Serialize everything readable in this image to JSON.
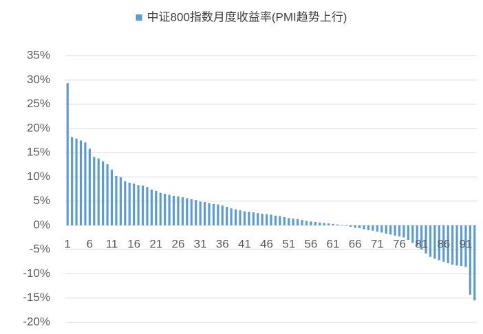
{
  "chart_data": {
    "type": "bar",
    "categories": [
      "1",
      null,
      null,
      null,
      null,
      "6",
      null,
      null,
      null,
      null,
      "11",
      null,
      null,
      null,
      null,
      "16",
      null,
      null,
      null,
      null,
      "21",
      null,
      null,
      null,
      null,
      "26",
      null,
      null,
      null,
      null,
      "31",
      null,
      null,
      null,
      null,
      "36",
      null,
      null,
      null,
      null,
      "41",
      null,
      null,
      null,
      null,
      "46",
      null,
      null,
      null,
      null,
      "51",
      null,
      null,
      null,
      null,
      "56",
      null,
      null,
      null,
      null,
      "61",
      null,
      null,
      null,
      null,
      "66",
      null,
      null,
      null,
      null,
      "71",
      null,
      null,
      null,
      null,
      "76",
      null,
      null,
      null,
      null,
      "81",
      null,
      null,
      null,
      null,
      "86",
      null,
      null,
      null,
      null,
      "91",
      null,
      null
    ],
    "series": [
      {
        "name": "中证800指数月度收益率(PMI趋势上行)",
        "color": "#5b9bd5",
        "values": [
          29.3,
          18.2,
          17.9,
          17.5,
          17.1,
          15.8,
          14.1,
          13.8,
          13.2,
          12.6,
          11.5,
          10.2,
          9.9,
          9.1,
          8.8,
          8.6,
          8.3,
          8.2,
          7.9,
          7.4,
          7.1,
          6.7,
          6.5,
          6.3,
          6.1,
          6.0,
          5.8,
          5.6,
          5.4,
          5.2,
          4.9,
          4.8,
          4.6,
          4.4,
          4.3,
          4.1,
          3.8,
          3.5,
          3.3,
          3.1,
          2.9,
          2.8,
          2.7,
          2.5,
          2.4,
          2.3,
          2.2,
          2.0,
          1.9,
          1.7,
          1.5,
          1.4,
          1.3,
          1.1,
          0.9,
          0.8,
          0.7,
          0.6,
          0.5,
          0.4,
          0.3,
          0.2,
          0.1,
          -0.1,
          -0.3,
          -0.5,
          -0.6,
          -0.8,
          -1.0,
          -1.1,
          -1.3,
          -1.5,
          -1.7,
          -1.9,
          -2.1,
          -2.3,
          -2.5,
          -3.0,
          -3.6,
          -4.3,
          -5.0,
          -5.8,
          -6.5,
          -6.9,
          -7.2,
          -7.5,
          -7.8,
          -8.1,
          -8.3,
          -8.4,
          -8.6,
          -14.3,
          -15.5
        ]
      }
    ],
    "ylim": [
      -20,
      35
    ],
    "yticks": [
      {
        "value": -20,
        "label": "-20%"
      },
      {
        "value": -15,
        "label": "-15%"
      },
      {
        "value": -10,
        "label": "-10%"
      },
      {
        "value": -5,
        "label": "-5%"
      },
      {
        "value": 0,
        "label": "0%"
      },
      {
        "value": 5,
        "label": "5%"
      },
      {
        "value": 10,
        "label": "10%"
      },
      {
        "value": 15,
        "label": "15%"
      },
      {
        "value": 20,
        "label": "20%"
      },
      {
        "value": 25,
        "label": "25%"
      },
      {
        "value": 30,
        "label": "30%"
      },
      {
        "value": 35,
        "label": "35%"
      }
    ],
    "grid": true,
    "legend": "top"
  }
}
